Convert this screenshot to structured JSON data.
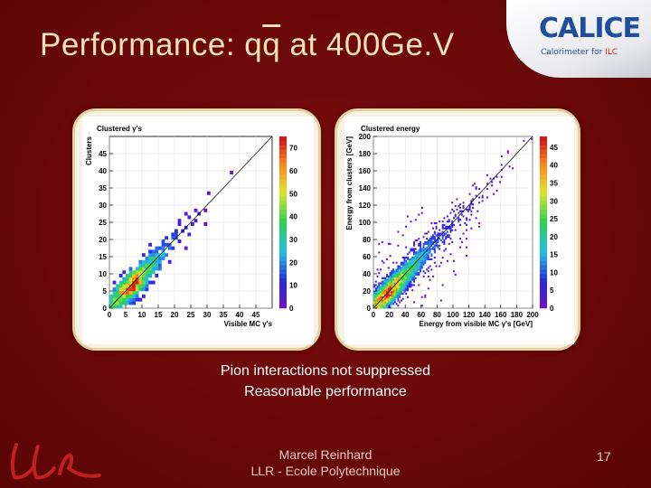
{
  "slide": {
    "title_pre": "Performance: q",
    "title_bar": "q",
    "title_post": " at 400Ge.V",
    "logo_text": "CALICE",
    "logo_sub_main": "Calorimeter for ",
    "logo_sub_ilc": "ILC",
    "caption_line1": "Pion interactions not suppressed",
    "caption_line2": "Reasonable performance",
    "author": "Marcel Reinhard",
    "affiliation": "LLR - Ecole Polytechnique",
    "page_number": "17",
    "colors": {
      "background": "#6b0a0a",
      "title": "#f3e2b8",
      "frame": "#e3cfa0"
    }
  },
  "chart_data": [
    {
      "type": "heatmap",
      "title": "Clustered γ's",
      "xlabel": "Visible MC γ's",
      "ylabel": "Clusters",
      "xlim": [
        0,
        50
      ],
      "ylim": [
        0,
        50
      ],
      "x_ticks": [
        0,
        5,
        10,
        15,
        20,
        25,
        30,
        35,
        40,
        45
      ],
      "y_ticks": [
        0,
        5,
        10,
        15,
        20,
        25,
        30,
        35,
        40,
        45
      ],
      "colorbar_ticks": [
        0,
        10,
        20,
        30,
        40,
        50,
        60,
        70
      ],
      "colorbar_max": 75,
      "diagonal_line": true,
      "peak": [
        7,
        6
      ],
      "bin_size": 1
    },
    {
      "type": "heatmap",
      "title": "Clustered energy",
      "xlabel": "Energy from visible MC γ's [GeV]",
      "ylabel": "Energy from clusters [GeV]",
      "xlim": [
        0,
        200
      ],
      "ylim": [
        0,
        200
      ],
      "x_ticks": [
        0,
        20,
        40,
        60,
        80,
        100,
        120,
        140,
        160,
        180,
        200
      ],
      "y_ticks": [
        0,
        20,
        40,
        60,
        80,
        100,
        120,
        140,
        160,
        180,
        200
      ],
      "colorbar_ticks": [
        0,
        5,
        10,
        15,
        20,
        25,
        30,
        35,
        40,
        45
      ],
      "colorbar_max": 48,
      "diagonal_line": true,
      "peak": [
        18,
        16
      ],
      "bin_size": 2
    }
  ]
}
